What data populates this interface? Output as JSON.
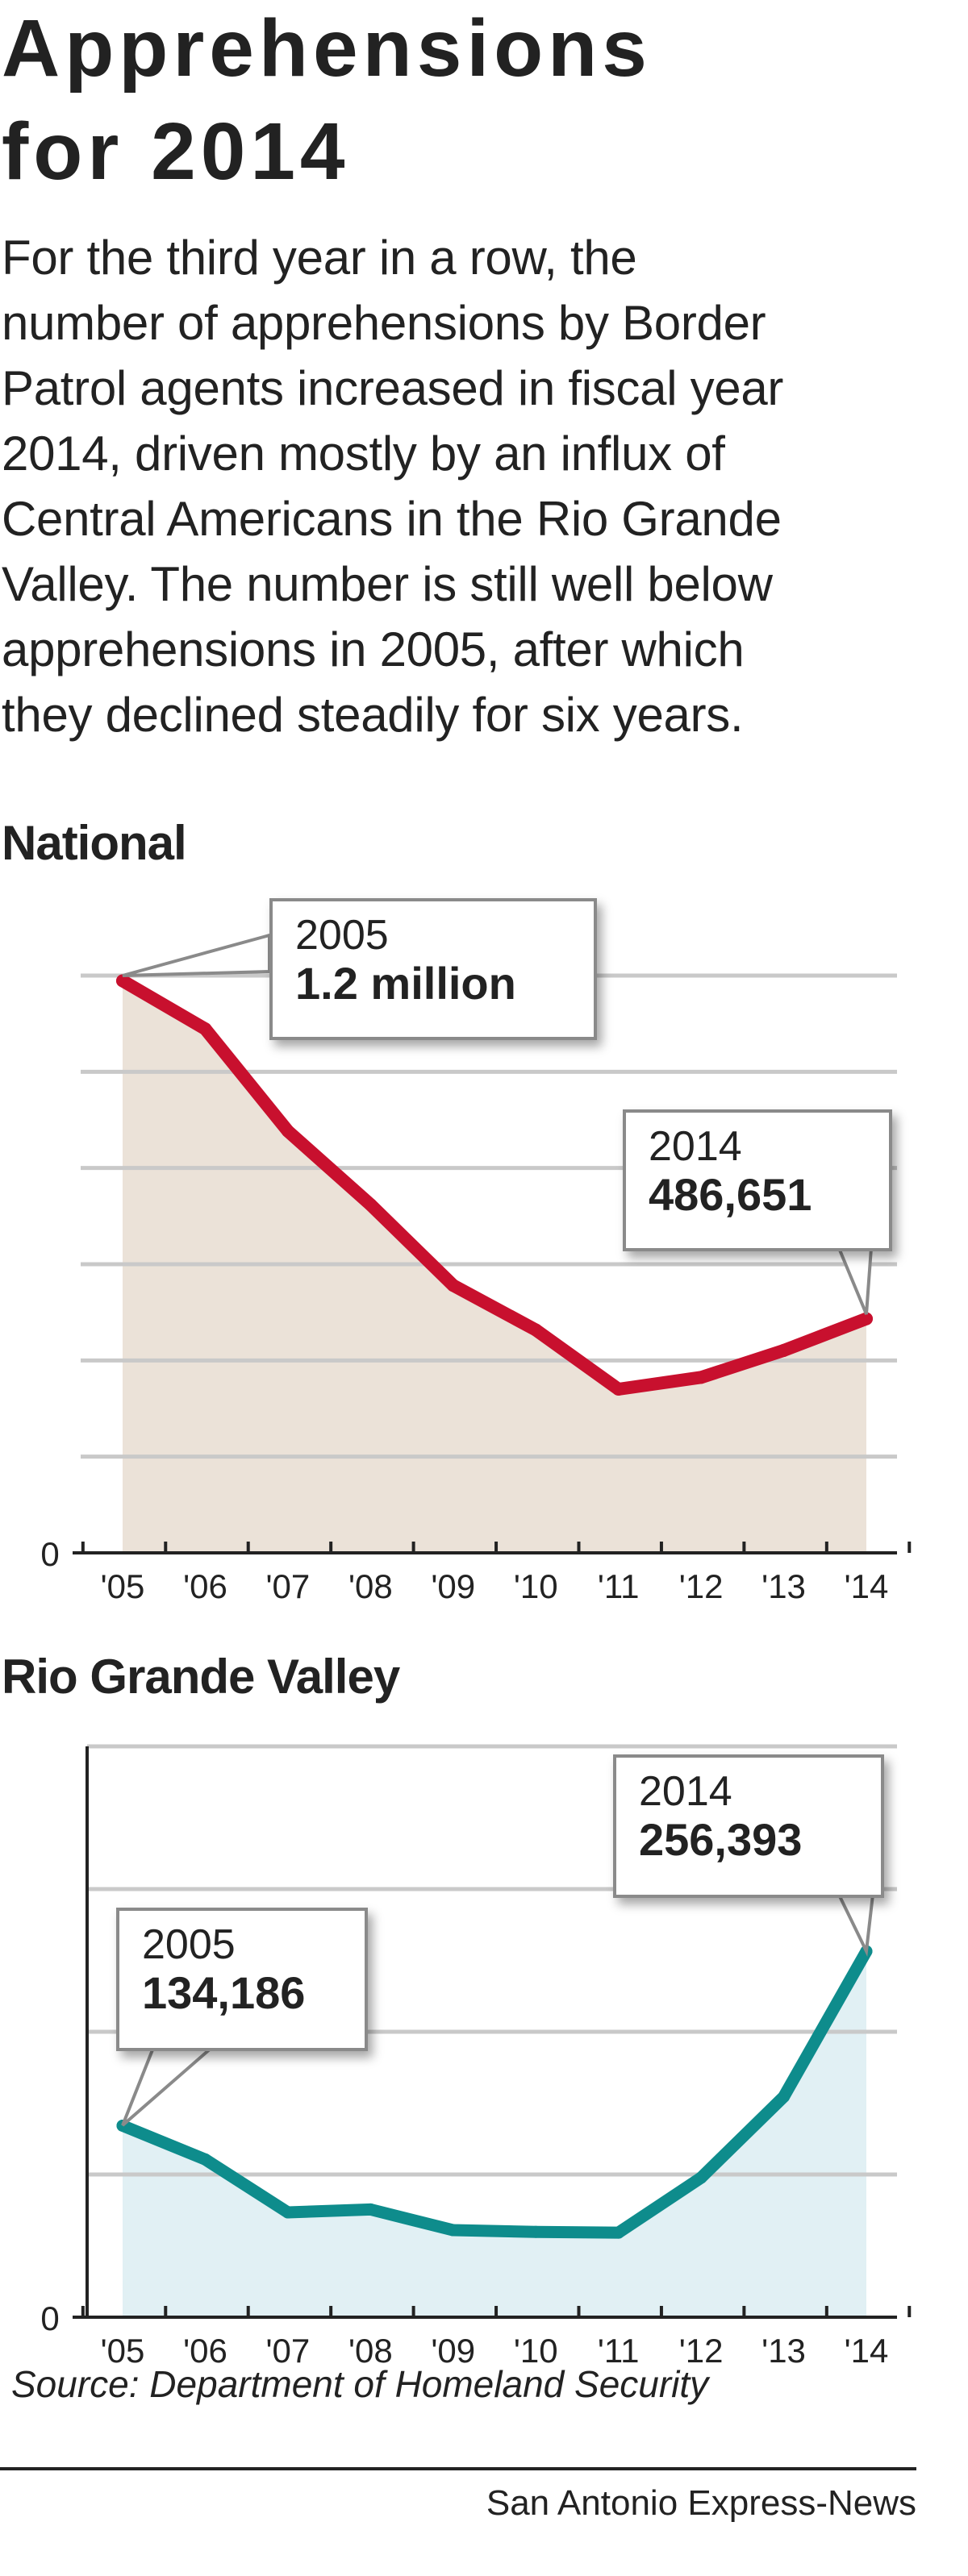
{
  "header": {
    "title_lines": [
      "Apprehensions",
      "for 2014"
    ],
    "body_lines": [
      "For the third year in a row, the",
      "number of apprehensions by Border",
      "Patrol agents increased in fiscal year",
      "2014, driven mostly by an influx of",
      "Central Americans in the Rio Grande",
      "Valley. The number is still well below",
      "apprehensions in 2005, after which",
      "they declined steadily for six years."
    ]
  },
  "chart_data": [
    {
      "type": "area",
      "title": "National",
      "categories": [
        "'05",
        "'06",
        "'07",
        "'08",
        "'09",
        "'10",
        "'11",
        "'12",
        "'13",
        "'14"
      ],
      "series": [
        {
          "values": [
            1189075,
            1089092,
            876704,
            723825,
            556041,
            463382,
            340252,
            364768,
            420789,
            486651
          ]
        }
      ],
      "ylim": [
        0,
        1200000
      ],
      "y_gridlines": [
        200000,
        400000,
        600000,
        800000,
        1000000,
        1200000
      ],
      "y_tick_labels": [
        "0"
      ],
      "grid": true,
      "line_color": "#c8102e",
      "fill_color": "#ebe2d8",
      "annotations": [
        {
          "year": "2005",
          "value": "1.2 million",
          "index": 0
        },
        {
          "year": "2014",
          "value": "486,651",
          "index": 9
        }
      ]
    },
    {
      "type": "area",
      "title": "Rio Grande Valley",
      "categories": [
        "'05",
        "'06",
        "'07",
        "'08",
        "'09",
        "'10",
        "'11",
        "'12",
        "'13",
        "'14"
      ],
      "series": [
        {
          "values": [
            134186,
            110528,
            73430,
            75476,
            60992,
            59766,
            59243,
            97762,
            154453,
            256393
          ]
        }
      ],
      "ylim": [
        0,
        400000
      ],
      "y_gridlines": [
        100000,
        200000,
        300000,
        400000
      ],
      "y_tick_labels": [
        "0"
      ],
      "grid": true,
      "line_color": "#0e8c8c",
      "fill_color": "#e1f0f4",
      "annotations": [
        {
          "year": "2005",
          "value": "134,186",
          "index": 0
        },
        {
          "year": "2014",
          "value": "256,393",
          "index": 9
        }
      ]
    }
  ],
  "footer": {
    "source": "Source: Department of Homeland Security",
    "credit": "San Antonio Express-News"
  }
}
